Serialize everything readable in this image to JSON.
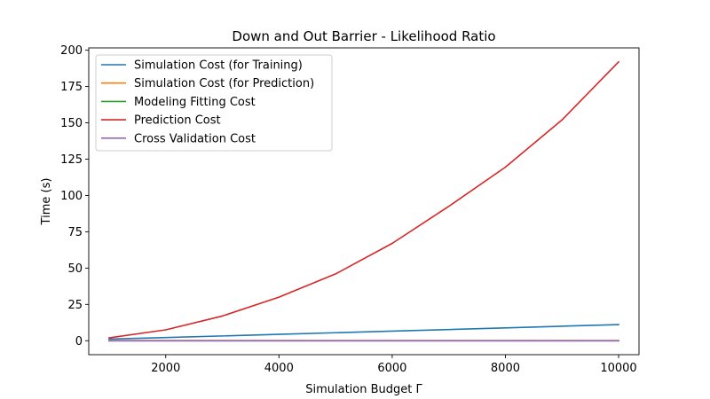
{
  "chart_data": {
    "type": "line",
    "title": "Down and Out Barrier - Likelihood Ratio",
    "xlabel": "Simulation Budget Γ",
    "ylabel": "Time (s)",
    "xlim": [
      640,
      10360
    ],
    "ylim": [
      -9.6,
      201.6
    ],
    "xticks": [
      2000,
      4000,
      6000,
      8000,
      10000
    ],
    "yticks": [
      0,
      25,
      50,
      75,
      100,
      125,
      150,
      175,
      200
    ],
    "grid": false,
    "legend_position": "top-left",
    "x": [
      1000,
      2000,
      3000,
      4000,
      5000,
      6000,
      7000,
      8000,
      9000,
      10000
    ],
    "series": [
      {
        "name": "Simulation Cost (for Training)",
        "color": "#1f77b4",
        "values": [
          1.1,
          2.2,
          3.3,
          4.4,
          5.5,
          6.6,
          7.7,
          8.8,
          10.0,
          11.1
        ]
      },
      {
        "name": "Simulation Cost (for Prediction)",
        "color": "#ff7f0e",
        "values": [
          0.1,
          0.1,
          0.1,
          0.1,
          0.1,
          0.1,
          0.1,
          0.1,
          0.1,
          0.1
        ]
      },
      {
        "name": "Modeling Fitting Cost",
        "color": "#2ca02c",
        "values": [
          0,
          0,
          0,
          0,
          0,
          0,
          0,
          0,
          0,
          0
        ]
      },
      {
        "name": "Prediction Cost",
        "color": "#d62728",
        "values": [
          2.0,
          7.5,
          17.0,
          30.0,
          46.0,
          67.0,
          92.5,
          119.5,
          152.0,
          192.0
        ]
      },
      {
        "name": "Cross Validation Cost",
        "color": "#9467bd",
        "values": [
          0,
          0,
          0,
          0,
          0,
          0,
          0,
          0,
          0,
          0
        ]
      }
    ]
  }
}
